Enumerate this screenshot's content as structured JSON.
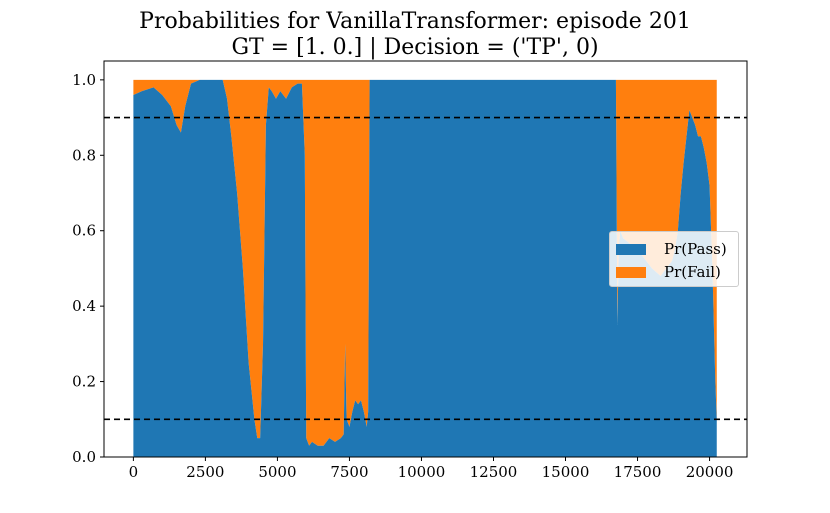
{
  "chart_data": {
    "type": "area",
    "title": "Probabilities for VanillaTransformer: episode 201",
    "subtitle": "GT = [1. 0.] | Decision = ('TP', 0)",
    "xlabel": "",
    "ylabel": "",
    "xlim": [
      -1020,
      21300
    ],
    "ylim": [
      0.0,
      1.05
    ],
    "xticks": [
      "0",
      "2500",
      "5000",
      "7500",
      "10000",
      "12500",
      "15000",
      "17500",
      "20000"
    ],
    "xtick_values": [
      0,
      2500,
      5000,
      7500,
      10000,
      12500,
      15000,
      17500,
      20000
    ],
    "yticks": [
      "0.0",
      "0.2",
      "0.4",
      "0.6",
      "0.8",
      "1.0"
    ],
    "ytick_values": [
      0.0,
      0.2,
      0.4,
      0.6,
      0.8,
      1.0
    ],
    "legend_position": "center-right",
    "grid": false,
    "series": [
      {
        "name": "Pr(Pass)",
        "color": "#1f77b4",
        "x": [
          0,
          300,
          700,
          1000,
          1300,
          1500,
          1650,
          1800,
          2000,
          2300,
          2700,
          3100,
          3250,
          3400,
          3600,
          3800,
          4000,
          4200,
          4300,
          4400,
          4500,
          4600,
          4700,
          4800,
          4950,
          5100,
          5300,
          5500,
          5700,
          5850,
          5950,
          6000,
          6100,
          6200,
          6400,
          6600,
          6800,
          7000,
          7200,
          7300,
          7350,
          7400,
          7500,
          7600,
          7700,
          7800,
          7900,
          8000,
          8100,
          8150,
          8200,
          8500,
          9000,
          10000,
          11000,
          12000,
          13000,
          14000,
          15000,
          16000,
          16500,
          16700,
          16750,
          16800,
          16850,
          16900,
          17000,
          17500,
          18000,
          18300,
          18500,
          18700,
          18800,
          18900,
          19000,
          19100,
          19200,
          19300,
          19400,
          19500,
          19600,
          19700,
          19800,
          19900,
          20000,
          20100,
          20200,
          20250
        ],
        "values": [
          0.96,
          0.97,
          0.98,
          0.96,
          0.93,
          0.88,
          0.86,
          0.93,
          0.99,
          1.0,
          1.0,
          1.0,
          0.95,
          0.85,
          0.7,
          0.5,
          0.25,
          0.1,
          0.05,
          0.05,
          0.3,
          0.88,
          0.98,
          0.97,
          0.95,
          0.97,
          0.95,
          0.98,
          0.99,
          0.99,
          0.8,
          0.05,
          0.03,
          0.04,
          0.03,
          0.03,
          0.05,
          0.04,
          0.05,
          0.06,
          0.3,
          0.1,
          0.08,
          0.12,
          0.15,
          0.14,
          0.15,
          0.12,
          0.08,
          0.12,
          1.0,
          1.0,
          1.0,
          1.0,
          1.0,
          1.0,
          1.0,
          1.0,
          1.0,
          1.0,
          1.0,
          1.0,
          1.0,
          0.35,
          0.55,
          0.6,
          0.58,
          0.55,
          0.5,
          0.48,
          0.5,
          0.52,
          0.55,
          0.6,
          0.7,
          0.78,
          0.85,
          0.92,
          0.9,
          0.88,
          0.85,
          0.85,
          0.82,
          0.78,
          0.72,
          0.5,
          0.2,
          0.1
        ]
      },
      {
        "name": "Pr(Fail)",
        "color": "#ff7f0e",
        "note": "stacked on top of Pr(Pass); Pr(Fail) = 1 - Pr(Pass)"
      }
    ],
    "hlines": [
      {
        "y": 0.9,
        "style": "dashed",
        "color": "#000000"
      },
      {
        "y": 0.1,
        "style": "dashed",
        "color": "#000000"
      }
    ]
  }
}
